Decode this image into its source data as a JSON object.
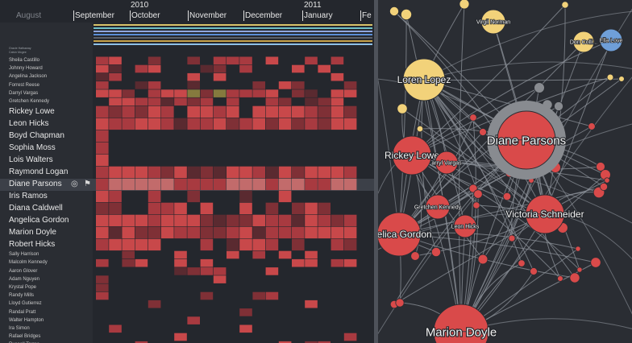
{
  "timeline": {
    "years": [
      "2010",
      "2011"
    ],
    "months": [
      "August",
      "September",
      "October",
      "November",
      "December",
      "January",
      "Fe"
    ],
    "tiny_rows": [
      "Gracie Hathaway",
      "Calvin Mcgee"
    ],
    "rows": [
      {
        "name": "Sheila Castillo",
        "size": "small"
      },
      {
        "name": "Johnny Howard",
        "size": "small"
      },
      {
        "name": "Angelina Jackson",
        "size": "small"
      },
      {
        "name": "Forrest Reese",
        "size": "small"
      },
      {
        "name": "Darryl Vargas",
        "size": "small"
      },
      {
        "name": "Gretchen Kennedy",
        "size": "small"
      },
      {
        "name": "Rickey Lowe",
        "size": "big"
      },
      {
        "name": "Leon Hicks",
        "size": "big"
      },
      {
        "name": "Boyd Chapman",
        "size": "big"
      },
      {
        "name": "Sophia Moss",
        "size": "big"
      },
      {
        "name": "Lois Walters",
        "size": "big"
      },
      {
        "name": "Raymond Logan",
        "size": "big"
      },
      {
        "name": "Diane Parsons",
        "size": "big"
      },
      {
        "name": "Iris Ramos",
        "size": "big"
      },
      {
        "name": "Diana Caldwell",
        "size": "big"
      },
      {
        "name": "Angelica Gordon",
        "size": "big"
      },
      {
        "name": "Marion Doyle",
        "size": "big"
      },
      {
        "name": "Robert Hicks",
        "size": "big"
      },
      {
        "name": "Sally Harrison",
        "size": "small"
      },
      {
        "name": "Malcolm Kennedy",
        "size": "small"
      },
      {
        "name": "Aaron Glover",
        "size": "small"
      },
      {
        "name": "Adam Nguyen",
        "size": "small"
      },
      {
        "name": "Krystal Pope",
        "size": "small"
      },
      {
        "name": "Randy Mills",
        "size": "small"
      },
      {
        "name": "Lloyd Gutierrez",
        "size": "small"
      },
      {
        "name": "Randal Pratt",
        "size": "small"
      },
      {
        "name": "Walter Hampton",
        "size": "small"
      },
      {
        "name": "Ira Simon",
        "size": "small"
      },
      {
        "name": "Rafael Bridges",
        "size": "small"
      },
      {
        "name": "Russell Torres",
        "size": "small"
      }
    ],
    "selected_row": "Diane Parsons",
    "selected_icons": [
      "target-icon",
      "pin-icon"
    ],
    "strip_colors": [
      "#d9c36a",
      "#6fc0c8",
      "#8ea6e0",
      "#5b8ed6",
      "#5a5f68",
      "#c7a24a",
      "#8ec0e8"
    ],
    "cell_colors": {
      "hot": "#c8484a",
      "warm": "#a83a40",
      "mid": "#7f3036",
      "low": "#5a2a30",
      "olive": "#857a3e",
      "pink": "#c26b6b"
    }
  },
  "graph": {
    "colors": {
      "red": "#d94a4a",
      "yellow": "#f2d27a",
      "blue": "#6f9fd8",
      "gray": "#888b90",
      "edge": "#8d939b"
    },
    "nodes": [
      {
        "id": "diane-parsons",
        "label": "Diane Parsons",
        "color": "red",
        "ring": true,
        "label_size": "xl"
      },
      {
        "id": "loren-lopez",
        "label": "Loren Lopez",
        "color": "yellow",
        "label_size": "l"
      },
      {
        "id": "rickey-lowe",
        "label": "Rickey Lowe",
        "color": "red",
        "label_size": "l"
      },
      {
        "id": "angelica-gordon",
        "label": "ngelica Gordon",
        "color": "red",
        "label_size": "l"
      },
      {
        "id": "marion-doyle",
        "label": "Marion Doyle",
        "color": "red",
        "label_size": "xl"
      },
      {
        "id": "victoria-schneider",
        "label": "Victoria Schneider",
        "color": "red",
        "label_size": "l"
      },
      {
        "id": "virgil-norman",
        "label": "Virgil Norman",
        "color": "yellow",
        "label_size": "s"
      },
      {
        "id": "don-collins",
        "label": "Don Colli...",
        "color": "yellow",
        "label_size": "s"
      },
      {
        "id": "ella-love",
        "label": "Ella Love",
        "color": "blue",
        "label_size": "s"
      },
      {
        "id": "darryl-vargas",
        "label": "arryl Vargas",
        "color": "red",
        "label_size": "s"
      },
      {
        "id": "gretchen-kennedy",
        "label": "Gretchen Kennedy",
        "color": "red",
        "label_size": "s"
      },
      {
        "id": "leon-hicks",
        "label": "Leon Hicks",
        "color": "red",
        "label_size": "s"
      }
    ]
  }
}
